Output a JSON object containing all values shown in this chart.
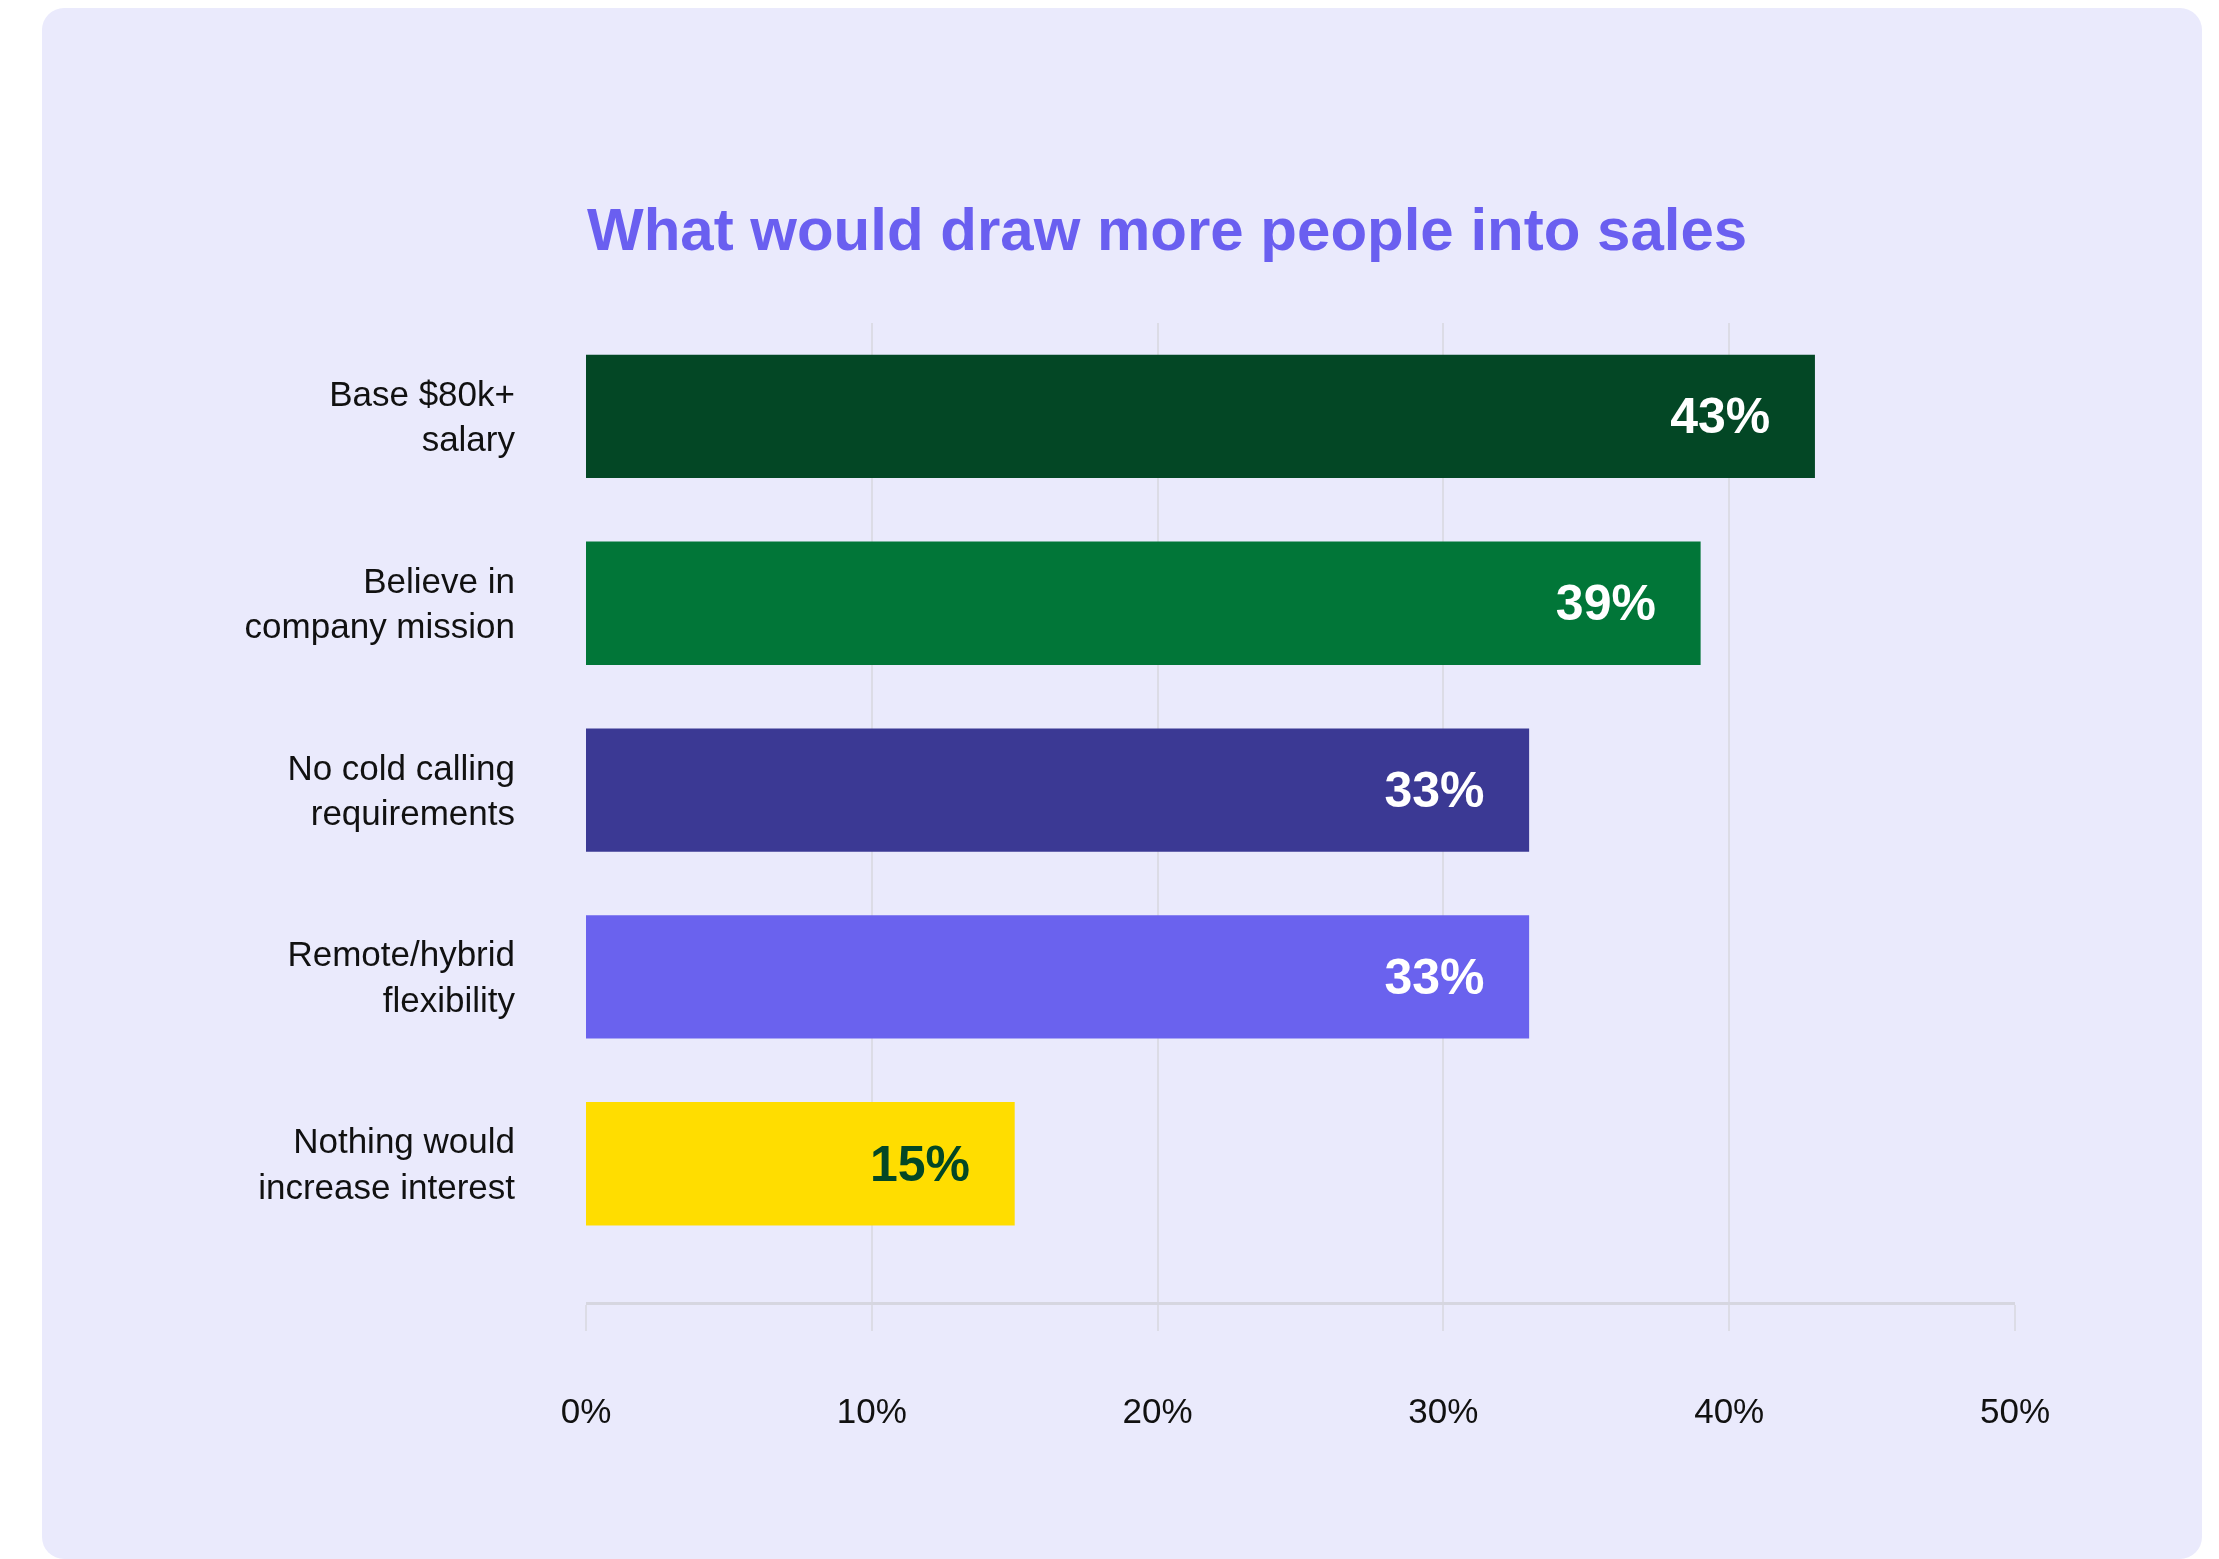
{
  "chart_data": {
    "type": "bar",
    "orientation": "horizontal",
    "title": "What would draw more people into sales",
    "categories": [
      "Base $80k+ salary",
      "Believe in company mission",
      "No cold calling requirements",
      "Remote/hybrid flexibility",
      "Nothing would increase interest"
    ],
    "values": [
      43,
      39,
      33,
      33,
      15
    ],
    "colors": [
      "#034725",
      "#017638",
      "#3b3994",
      "#6a62ee",
      "#ffdd00"
    ],
    "value_labels": [
      "43%",
      "39%",
      "33%",
      "33%",
      "15%"
    ],
    "xlim": [
      0,
      50
    ],
    "xticks": [
      {
        "value": 0,
        "label": "0%"
      },
      {
        "value": 10,
        "label": "10%"
      },
      {
        "value": 20,
        "label": "20%"
      },
      {
        "value": 30,
        "label": "30%"
      },
      {
        "value": 40,
        "label": "40%"
      },
      {
        "value": 50,
        "label": "50%"
      }
    ],
    "grid": "x"
  }
}
